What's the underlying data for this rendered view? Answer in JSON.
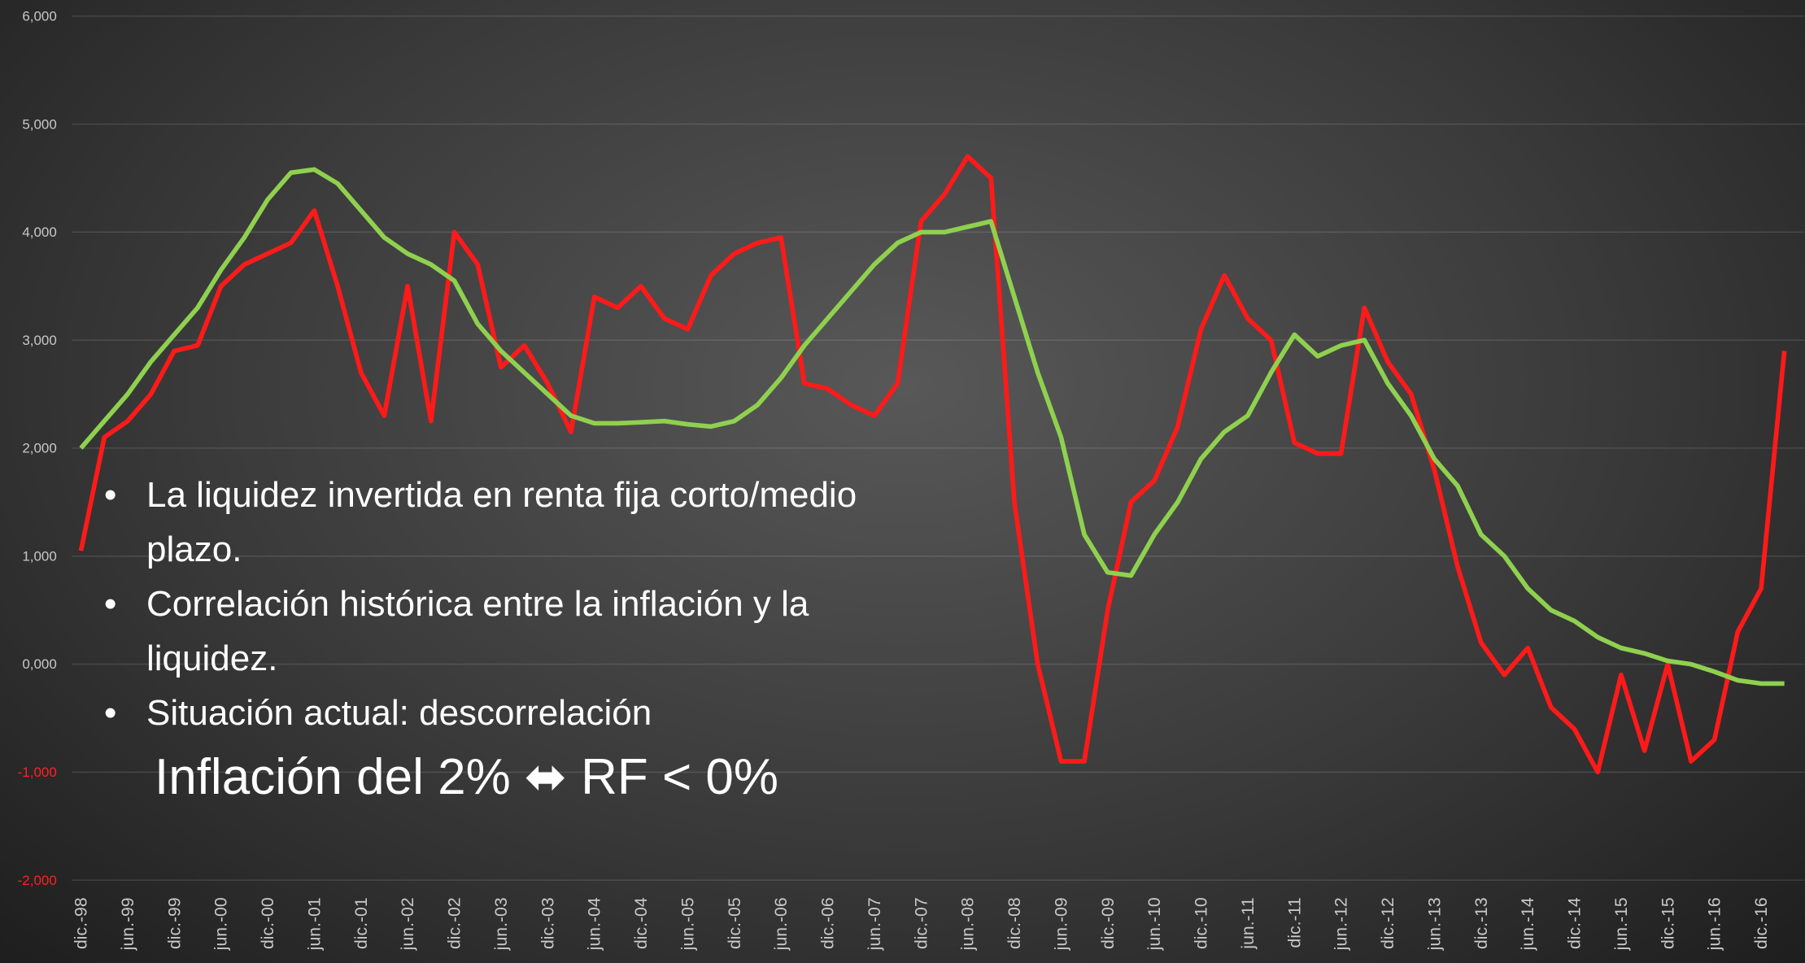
{
  "chart_data": {
    "type": "line",
    "categories": [
      "dic.-98",
      null,
      "jun.-99",
      null,
      "dic.-99",
      null,
      "jun.-00",
      null,
      "dic.-00",
      null,
      "jun.-01",
      null,
      "dic.-01",
      null,
      "jun.-02",
      null,
      "dic.-02",
      null,
      "jun.-03",
      null,
      "dic.-03",
      null,
      "jun.-04",
      null,
      "dic.-04",
      null,
      "jun.-05",
      null,
      "dic.-05",
      null,
      "jun.-06",
      null,
      "dic.-06",
      null,
      "jun.-07",
      null,
      "dic.-07",
      null,
      "jun.-08",
      null,
      "dic.-08",
      null,
      "jun.-09",
      null,
      "dic.-09",
      null,
      "jun.-10",
      null,
      "dic.-10",
      null,
      "jun.-11",
      null,
      "dic.-11",
      null,
      "jun.-12",
      null,
      "dic.-12",
      null,
      "jun.-13",
      null,
      "dic.-13",
      null,
      "jun.-14",
      null,
      "dic.-14",
      null,
      "jun.-15",
      null,
      "dic.-15",
      null,
      "jun.-16",
      null,
      "dic.-16",
      null
    ],
    "series": [
      {
        "color": "#ff1a1a",
        "values": [
          1050,
          2100,
          2250,
          2500,
          2900,
          2950,
          3500,
          3700,
          3800,
          3900,
          4200,
          3500,
          2700,
          2300,
          3500,
          2250,
          4000,
          3700,
          2750,
          2950,
          2600,
          2150,
          3400,
          3300,
          3500,
          3200,
          3100,
          3600,
          3800,
          3900,
          3950,
          2600,
          2550,
          2400,
          2300,
          2600,
          4100,
          4350,
          4700,
          4500,
          1500,
          0,
          -900,
          -900,
          500,
          1500,
          1700,
          2200,
          3100,
          3600,
          3200,
          3000,
          2050,
          1950,
          1950,
          3300,
          2800,
          2500,
          1800,
          900,
          200,
          -100,
          150,
          -400,
          -600,
          -1000,
          -100,
          -800,
          0,
          -900,
          -700,
          300,
          700,
          2900
        ]
      },
      {
        "color": "#8fd14f",
        "values": [
          2000,
          2250,
          2500,
          2800,
          3050,
          3300,
          3650,
          3950,
          4300,
          4550,
          4580,
          4450,
          4200,
          3950,
          3800,
          3700,
          3550,
          3150,
          2900,
          2700,
          2500,
          2300,
          2230,
          2230,
          2240,
          2250,
          2220,
          2200,
          2250,
          2400,
          2650,
          2950,
          3200,
          3450,
          3700,
          3900,
          4000,
          4000,
          4050,
          4100,
          3400,
          2700,
          2100,
          1200,
          850,
          820,
          1200,
          1500,
          1900,
          2150,
          2300,
          2700,
          3050,
          2850,
          2950,
          3000,
          2600,
          2300,
          1900,
          1650,
          1200,
          1000,
          700,
          500,
          400,
          250,
          150,
          100,
          30,
          0,
          -70,
          -150,
          -180,
          -180
        ]
      }
    ],
    "ylim": [
      -2000,
      6000
    ],
    "yticks": [
      {
        "value": -2000,
        "label": "-2,000"
      },
      {
        "value": -1000,
        "label": "-1,000"
      },
      {
        "value": 0,
        "label": "0,000"
      },
      {
        "value": 1000,
        "label": "1,000"
      },
      {
        "value": 2000,
        "label": "2,000"
      },
      {
        "value": 3000,
        "label": "3,000"
      },
      {
        "value": 4000,
        "label": "4,000"
      },
      {
        "value": 5000,
        "label": "5,000"
      },
      {
        "value": 6000,
        "label": "6,000"
      }
    ],
    "grid": true,
    "tick_color": "#c8c8c8",
    "negative_tick_color": "#ff2020",
    "bullets": [
      "La liquidez invertida en renta fija corto/medio plazo.",
      "Correlación histórica entre la inflación y la liquidez.",
      "Situación actual: descorrelación"
    ],
    "callout": "Inflación del 2% ⬌ RF < 0%"
  }
}
